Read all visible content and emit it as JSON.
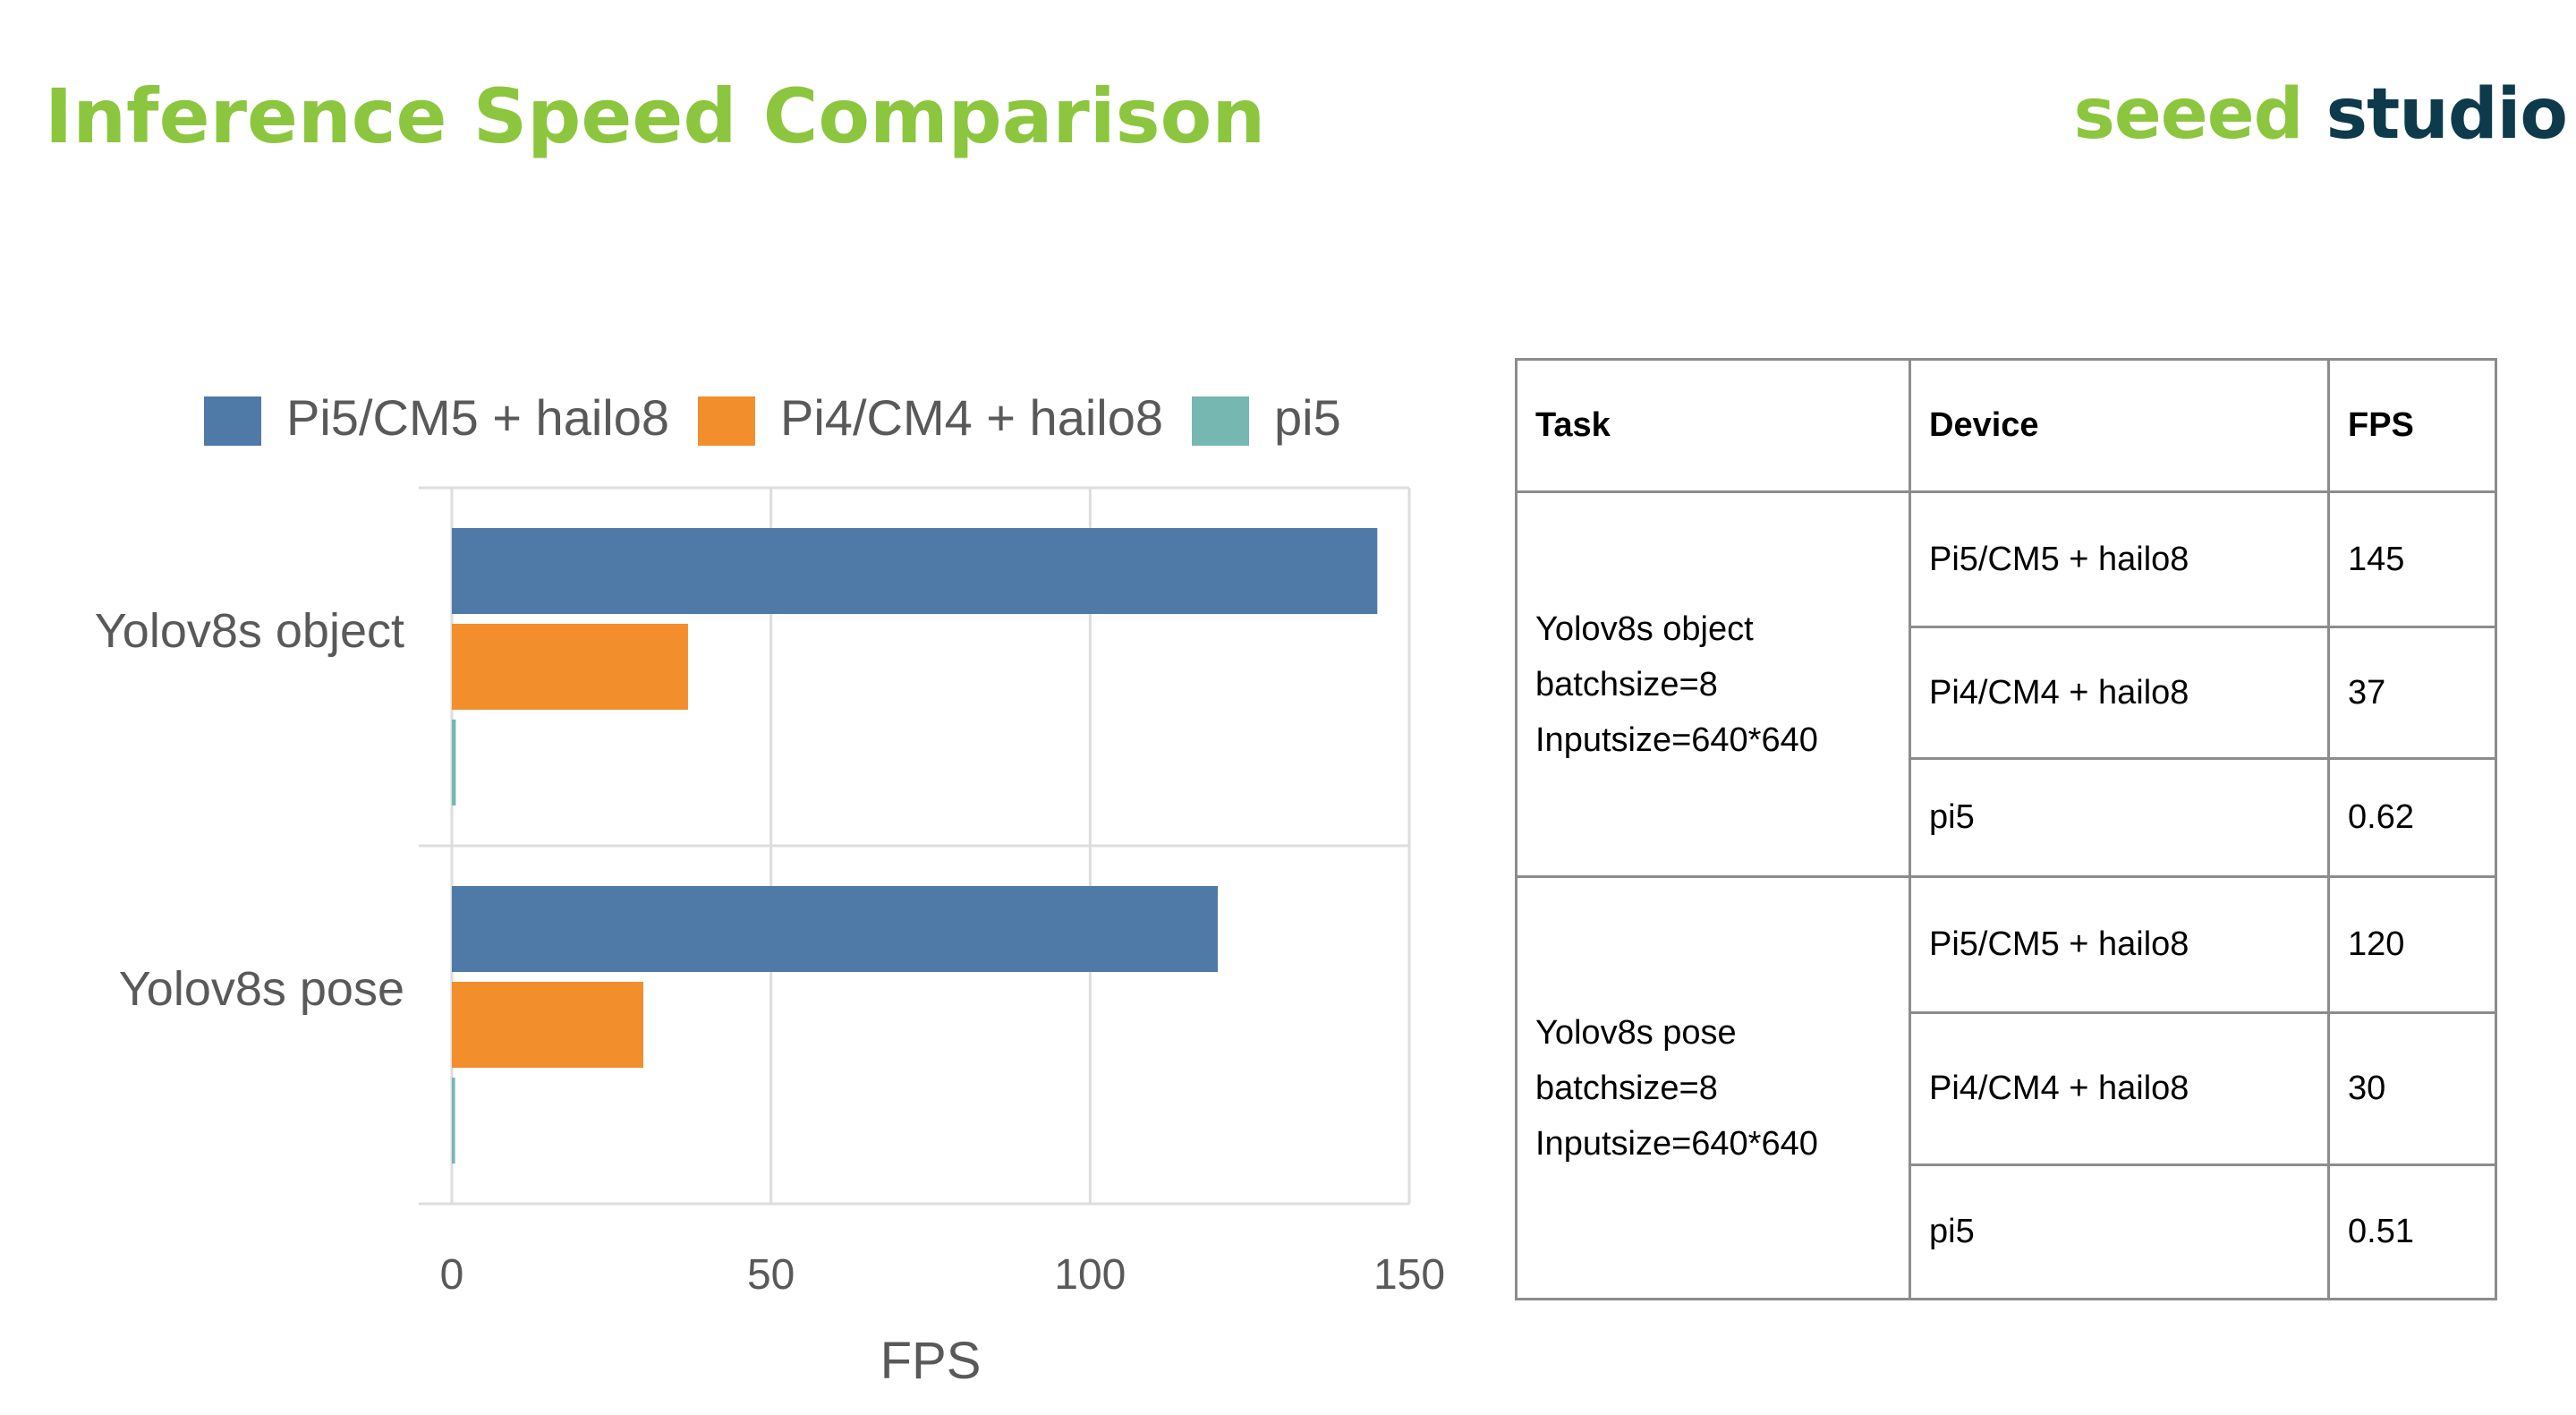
{
  "title": "Inference Speed Comparison",
  "logo": {
    "part1": "seeed",
    "part2": "studio"
  },
  "colors": {
    "accent": "#8cc63f",
    "brand_dark": "#0d3b4b"
  },
  "chart_data": {
    "type": "bar",
    "orientation": "horizontal",
    "categories": [
      "Yolov8s object",
      "Yolov8s pose"
    ],
    "series": [
      {
        "name": "Pi5/CM5 + hailo8",
        "color": "#4f79a7",
        "values": [
          145,
          120
        ]
      },
      {
        "name": "Pi4/CM4 + hailo8",
        "color": "#f28e2b",
        "values": [
          37,
          30
        ]
      },
      {
        "name": "pi5",
        "color": "#76b7b2",
        "values": [
          0.62,
          0.51
        ]
      }
    ],
    "xlabel": "FPS",
    "ylabel": "",
    "xlim": [
      0,
      150
    ],
    "xticks": [
      0,
      50,
      100,
      150
    ],
    "legend": "top",
    "grid": true
  },
  "table": {
    "headers": [
      "Task",
      "Device",
      "FPS"
    ],
    "groups": [
      {
        "task_lines": [
          "Yolov8s object",
          "batchsize=8",
          "Inputsize=640*640"
        ],
        "rows": [
          {
            "device": "Pi5/CM5 + hailo8",
            "fps": "145"
          },
          {
            "device": "Pi4/CM4 + hailo8",
            "fps": "37"
          },
          {
            "device": "pi5",
            "fps": "0.62"
          }
        ]
      },
      {
        "task_lines": [
          "Yolov8s pose",
          "batchsize=8",
          "Inputsize=640*640"
        ],
        "rows": [
          {
            "device": "Pi5/CM5 + hailo8",
            "fps": "120"
          },
          {
            "device": "Pi4/CM4 + hailo8",
            "fps": "30"
          },
          {
            "device": "pi5",
            "fps": "0.51"
          }
        ]
      }
    ]
  }
}
